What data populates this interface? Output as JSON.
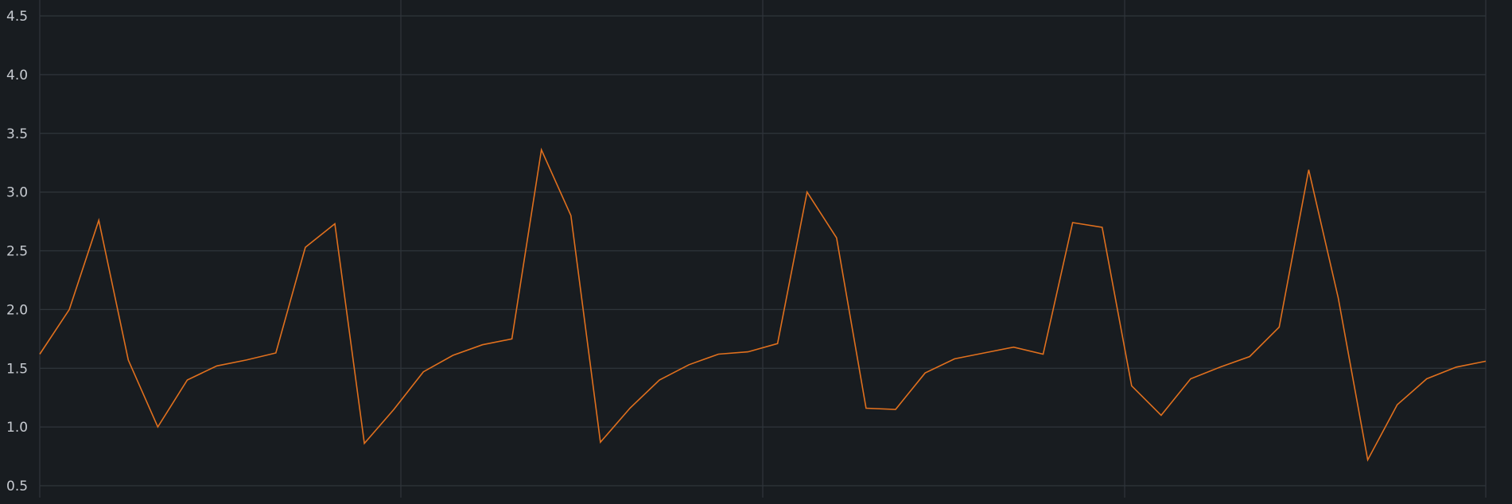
{
  "colors": {
    "background": "#181c20",
    "grid": "#2f353b",
    "series": "#e0701e",
    "tick_text": "#c7cbd1"
  },
  "chart_data": {
    "type": "line",
    "title": "",
    "xlabel": "",
    "ylabel": "",
    "grid": true,
    "legend": "none",
    "ylim": [
      0.5,
      4.5
    ],
    "xlim": [
      0,
      49
    ],
    "y_ticks": [
      "0.5",
      "1.0",
      "1.5",
      "2.0",
      "2.5",
      "3.0",
      "3.5",
      "4.0",
      "4.5"
    ],
    "x_ticks": [],
    "series": [
      {
        "values": [
          1.62,
          2.0,
          2.76,
          1.57,
          1.0,
          1.4,
          1.52,
          1.57,
          1.63,
          2.53,
          2.73,
          0.86,
          1.15,
          1.47,
          1.61,
          1.7,
          1.75,
          3.36,
          2.8,
          0.87,
          1.16,
          1.4,
          1.53,
          1.62,
          1.64,
          1.71,
          3.0,
          2.61,
          1.16,
          1.15,
          1.46,
          1.58,
          1.63,
          1.68,
          1.62,
          2.74,
          2.7,
          1.35,
          1.1,
          1.41,
          1.51,
          1.6,
          1.85,
          3.19,
          2.1,
          0.72,
          1.19,
          1.41,
          1.51,
          1.56
        ]
      }
    ]
  }
}
